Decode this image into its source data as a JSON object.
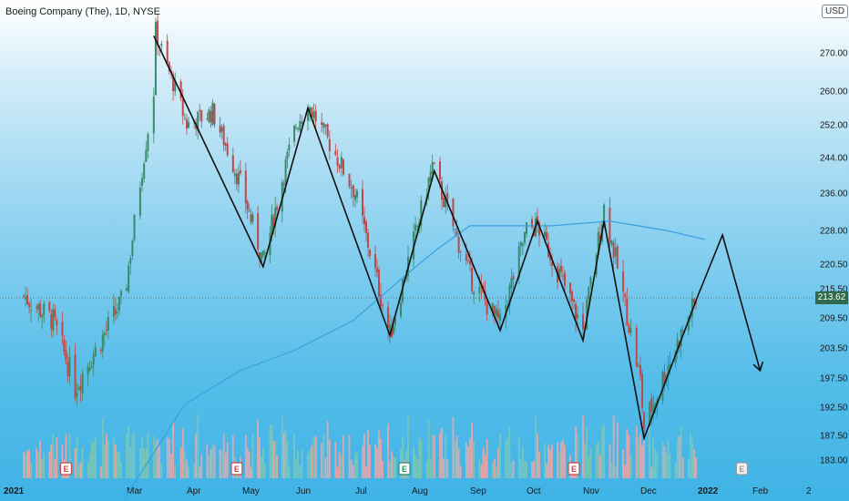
{
  "header": {
    "title": "Boeing Company (The), 1D, NYSE",
    "currency": "USD"
  },
  "chart_data": {
    "type": "candlestick",
    "title": "Boeing Company (The), 1D, NYSE",
    "current_price_label": "213.62",
    "y_ticks": [
      "270.00",
      "260.00",
      "252.00",
      "244.00",
      "236.00",
      "228.00",
      "220.50",
      "215.50",
      "209.50",
      "203.50",
      "197.50",
      "192.50",
      "187.50",
      "183.00"
    ],
    "x_ticks": [
      "2021",
      "Mar",
      "Apr",
      "May",
      "Jun",
      "Jul",
      "Aug",
      "Sep",
      "Oct",
      "Nov",
      "Dec",
      "2022",
      "Feb",
      "2"
    ],
    "bold_x_ticks": [
      "2021",
      "2022"
    ],
    "earnings_markers": [
      {
        "label": "E",
        "date": "Jan 27",
        "type": "past-negative"
      },
      {
        "label": "E",
        "date": "Apr 28",
        "type": "past-negative"
      },
      {
        "label": "E",
        "date": "Jul 28",
        "type": "past-positive"
      },
      {
        "label": "E",
        "date": "Oct 27",
        "type": "past-negative"
      },
      {
        "label": "E",
        "date": "Jan 26",
        "type": "upcoming"
      }
    ],
    "ohlc_anchors": [
      {
        "x": "2021-01-04",
        "close": 214
      },
      {
        "x": "2021-01-20",
        "close": 209
      },
      {
        "x": "2021-02-01",
        "close": 196
      },
      {
        "x": "2021-02-15",
        "close": 205
      },
      {
        "x": "2021-02-28",
        "close": 214
      },
      {
        "x": "2021-03-15",
        "close": 260
      },
      {
        "x": "2021-03-16",
        "close": 275
      },
      {
        "x": "2021-04-01",
        "close": 252
      },
      {
        "x": "2021-04-15",
        "close": 255
      },
      {
        "x": "2021-05-01",
        "close": 237
      },
      {
        "x": "2021-05-13",
        "close": 221
      },
      {
        "x": "2021-06-01",
        "close": 252
      },
      {
        "x": "2021-06-07",
        "close": 257
      },
      {
        "x": "2021-07-01",
        "close": 236
      },
      {
        "x": "2021-07-20",
        "close": 206
      },
      {
        "x": "2021-08-01",
        "close": 224
      },
      {
        "x": "2021-08-12",
        "close": 242
      },
      {
        "x": "2021-09-01",
        "close": 218
      },
      {
        "x": "2021-09-17",
        "close": 208
      },
      {
        "x": "2021-10-01",
        "close": 228
      },
      {
        "x": "2021-10-07",
        "close": 229
      },
      {
        "x": "2021-11-01",
        "close": 207
      },
      {
        "x": "2021-11-12",
        "close": 233
      },
      {
        "x": "2021-12-01",
        "close": 197
      },
      {
        "x": "2021-12-03",
        "close": 189
      },
      {
        "x": "2021-12-31",
        "close": 213
      }
    ],
    "moving_average": {
      "points": [
        {
          "x": "2021-02-28",
          "y": 176
        },
        {
          "x": "2021-03-31",
          "y": 193
        },
        {
          "x": "2021-04-30",
          "y": 199
        },
        {
          "x": "2021-05-31",
          "y": 203
        },
        {
          "x": "2021-06-30",
          "y": 209
        },
        {
          "x": "2021-07-31",
          "y": 219
        },
        {
          "x": "2021-08-15",
          "y": 224
        },
        {
          "x": "2021-09-01",
          "y": 229
        },
        {
          "x": "2021-10-15",
          "y": 229
        },
        {
          "x": "2021-11-15",
          "y": 230
        },
        {
          "x": "2021-12-15",
          "y": 228
        },
        {
          "x": "2022-01-05",
          "y": 226
        }
      ]
    },
    "zigzag_drawing": {
      "points": [
        {
          "x": "2021-03-15",
          "y": 274
        },
        {
          "x": "2021-05-13",
          "y": 220
        },
        {
          "x": "2021-06-07",
          "y": 256
        },
        {
          "x": "2021-07-20",
          "y": 206
        },
        {
          "x": "2021-08-13",
          "y": 241
        },
        {
          "x": "2021-09-17",
          "y": 207
        },
        {
          "x": "2021-10-07",
          "y": 230
        },
        {
          "x": "2021-11-01",
          "y": 205
        },
        {
          "x": "2021-11-12",
          "y": 230
        },
        {
          "x": "2021-12-03",
          "y": 187
        },
        {
          "x": "2022-01-01",
          "y": 214
        },
        {
          "x": "2022-01-15",
          "y": 227
        },
        {
          "x": "2022-02-05",
          "y": 199
        }
      ],
      "arrow_end": true
    },
    "volume": {
      "shown": true
    }
  },
  "colors": {
    "up": "#3a8a6a",
    "down": "#c24848",
    "ma": "#3aa0e0",
    "drawing": "#111111",
    "vol_up": "#7cc8b6",
    "vol_down": "#f2a5a5",
    "price_tag": "#2f6a4c"
  }
}
